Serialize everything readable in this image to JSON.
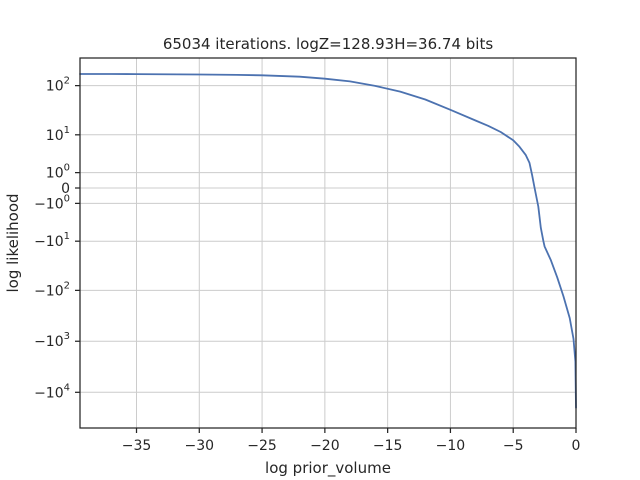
{
  "chart_data": {
    "type": "line",
    "title": "65034 iterations. logZ=128.93H=36.74 bits",
    "xlabel": "log prior_volume",
    "ylabel": "log likelihood",
    "xlim": [
      -39.5,
      0
    ],
    "yscale": "symlog",
    "ylim": [
      -50000,
      350
    ],
    "grid": true,
    "legend": "none",
    "x_ticks": [
      {
        "value": -35,
        "label": "−35"
      },
      {
        "value": -30,
        "label": "−30"
      },
      {
        "value": -25,
        "label": "−25"
      },
      {
        "value": -20,
        "label": "−20"
      },
      {
        "value": -15,
        "label": "−15"
      },
      {
        "value": -10,
        "label": "−10"
      },
      {
        "value": -5,
        "label": "−5"
      },
      {
        "value": 0,
        "label": "0"
      }
    ],
    "y_ticks": [
      {
        "value": 100,
        "base": "10",
        "exp": "2",
        "sign": ""
      },
      {
        "value": 10,
        "base": "10",
        "exp": "1",
        "sign": ""
      },
      {
        "value": 1,
        "base": "10",
        "exp": "0",
        "sign": ""
      },
      {
        "value": 0,
        "base": "0",
        "exp": "",
        "sign": ""
      },
      {
        "value": -1,
        "base": "10",
        "exp": "0",
        "sign": "−"
      },
      {
        "value": -10,
        "base": "10",
        "exp": "1",
        "sign": "−"
      },
      {
        "value": -100,
        "base": "10",
        "exp": "2",
        "sign": "−"
      },
      {
        "value": -1000,
        "base": "10",
        "exp": "3",
        "sign": "−"
      },
      {
        "value": -10000,
        "base": "10",
        "exp": "4",
        "sign": "−"
      }
    ],
    "series": [
      {
        "color": "#4c72b0",
        "x": [
          -39.5,
          -37,
          -35,
          -30,
          -27,
          -25,
          -22,
          -20,
          -18,
          -16,
          -14,
          -12,
          -10,
          -8,
          -7,
          -6,
          -5,
          -4.5,
          -4,
          -3.7,
          -3.5,
          -3.3,
          -3.0,
          -2.8,
          -2.6,
          -2.5,
          -2.0,
          -1.5,
          -1.0,
          -0.5,
          -0.2,
          -0.05,
          0
        ],
        "y": [
          170,
          170,
          169,
          166,
          163,
          160,
          150,
          137,
          121,
          99,
          76,
          53,
          33,
          20,
          15.5,
          11.5,
          7.6,
          5.4,
          3.4,
          2.1,
          0.8,
          0,
          -1.3,
          -5,
          -10,
          -13,
          -25,
          -55,
          -130,
          -350,
          -900,
          -2500,
          -20000
        ]
      }
    ]
  }
}
